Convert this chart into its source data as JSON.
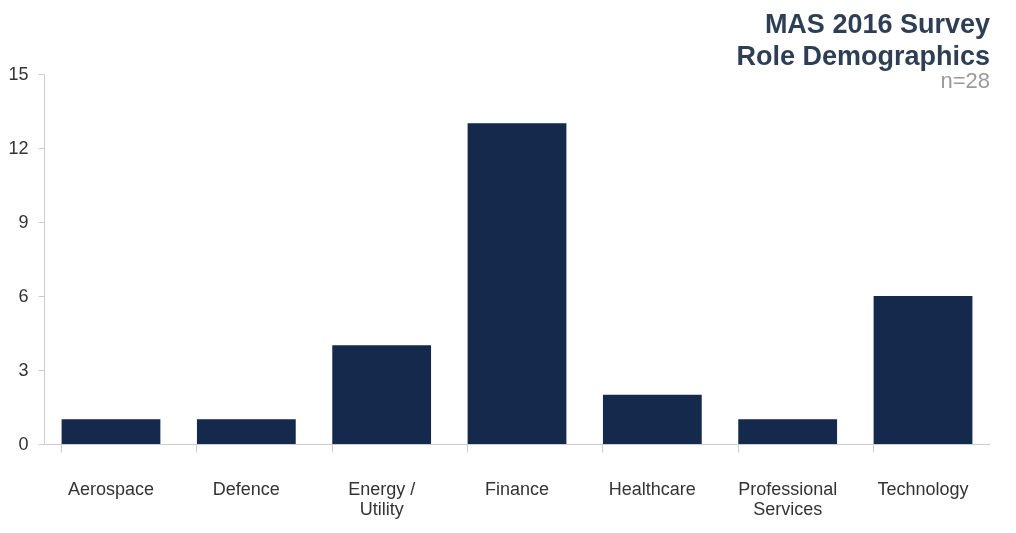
{
  "chart_data": {
    "type": "bar",
    "title": "MAS 2016 Survey Role Demographics",
    "subtitle": "n=28",
    "categories": [
      "Aerospace",
      "Defence",
      "Energy / Utility",
      "Finance",
      "Healthcare",
      "Professional Services",
      "Technology"
    ],
    "values": [
      1,
      1,
      4,
      13,
      2,
      1,
      6
    ],
    "color": "#14294b",
    "ylim": [
      0,
      15
    ],
    "yticks": [
      0,
      3,
      6,
      9,
      12,
      15
    ],
    "grid": false
  }
}
